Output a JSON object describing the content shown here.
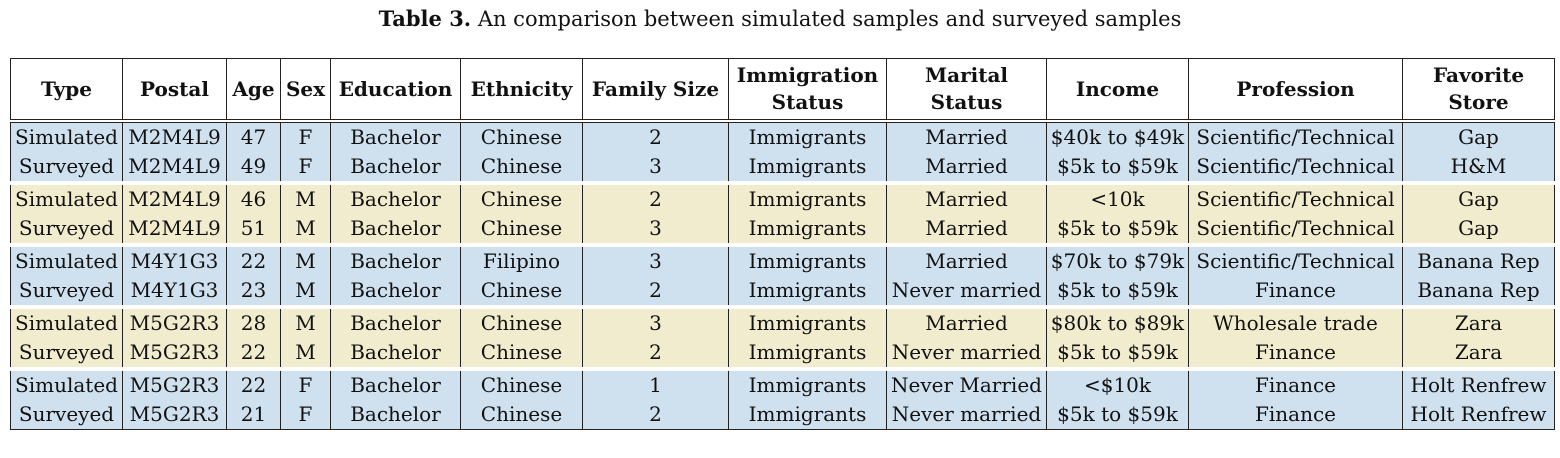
{
  "caption": {
    "label": "Table 3.",
    "text": "An comparison between simulated samples and surveyed samples"
  },
  "columns": [
    {
      "l1": "Type",
      "l2": ""
    },
    {
      "l1": "Postal",
      "l2": ""
    },
    {
      "l1": "Age",
      "l2": ""
    },
    {
      "l1": "Sex",
      "l2": ""
    },
    {
      "l1": "Education",
      "l2": ""
    },
    {
      "l1": "Ethnicity",
      "l2": ""
    },
    {
      "l1": "Family Size",
      "l2": ""
    },
    {
      "l1": "Immigration",
      "l2": "Status"
    },
    {
      "l1": "Marital",
      "l2": "Status"
    },
    {
      "l1": "Income",
      "l2": ""
    },
    {
      "l1": "Profession",
      "l2": ""
    },
    {
      "l1": "Favorite",
      "l2": "Store"
    }
  ],
  "groups": [
    {
      "color": "#cfe0ef",
      "rows": [
        [
          "Simulated",
          "M2M4L9",
          "47",
          "F",
          "Bachelor",
          "Chinese",
          "2",
          "Immigrants",
          "Married",
          "$40k to $49k",
          "Scientific/Technical",
          "Gap"
        ],
        [
          "Surveyed",
          "M2M4L9",
          "49",
          "F",
          "Bachelor",
          "Chinese",
          "3",
          "Immigrants",
          "Married",
          "$5k to $59k",
          "Scientific/Technical",
          "H&M"
        ]
      ]
    },
    {
      "color": "#f1eccd",
      "rows": [
        [
          "Simulated",
          "M2M4L9",
          "46",
          "M",
          "Bachelor",
          "Chinese",
          "2",
          "Immigrants",
          "Married",
          "<10k",
          "Scientific/Technical",
          "Gap"
        ],
        [
          "Surveyed",
          "M2M4L9",
          "51",
          "M",
          "Bachelor",
          "Chinese",
          "3",
          "Immigrants",
          "Married",
          "$5k to $59k",
          "Scientific/Technical",
          "Gap"
        ]
      ]
    },
    {
      "color": "#cfe0ef",
      "rows": [
        [
          "Simulated",
          "M4Y1G3",
          "22",
          "M",
          "Bachelor",
          "Filipino",
          "3",
          "Immigrants",
          "Married",
          "$70k to $79k",
          "Scientific/Technical",
          "Banana Rep"
        ],
        [
          "Surveyed",
          "M4Y1G3",
          "23",
          "M",
          "Bachelor",
          "Chinese",
          "2",
          "Immigrants",
          "Never married",
          "$5k to $59k",
          "Finance",
          "Banana Rep"
        ]
      ]
    },
    {
      "color": "#f1eccd",
      "rows": [
        [
          "Simulated",
          "M5G2R3",
          "28",
          "M",
          "Bachelor",
          "Chinese",
          "3",
          "Immigrants",
          "Married",
          "$80k to $89k",
          "Wholesale trade",
          "Zara"
        ],
        [
          "Surveyed",
          "M5G2R3",
          "22",
          "M",
          "Bachelor",
          "Chinese",
          "2",
          "Immigrants",
          "Never married",
          "$5k to $59k",
          "Finance",
          "Zara"
        ]
      ]
    },
    {
      "color": "#cfe0ef",
      "rows": [
        [
          "Simulated",
          "M5G2R3",
          "22",
          "F",
          "Bachelor",
          "Chinese",
          "1",
          "Immigrants",
          "Never Married",
          "<$10k",
          "Finance",
          "Holt Renfrew"
        ],
        [
          "Surveyed",
          "M5G2R3",
          "21",
          "F",
          "Bachelor",
          "Chinese",
          "2",
          "Immigrants",
          "Never married",
          "$5k to $59k",
          "Finance",
          "Holt Renfrew"
        ]
      ]
    }
  ]
}
